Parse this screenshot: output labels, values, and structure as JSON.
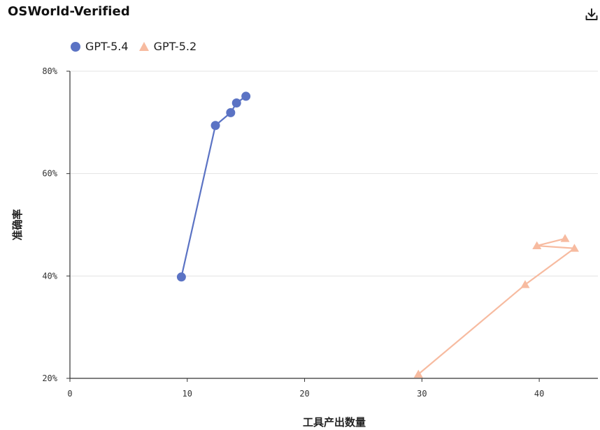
{
  "title": "OSWorld-Verified",
  "download_icon": "download-icon",
  "legend": [
    {
      "name": "GPT-5.4",
      "marker": "circle",
      "color": "#5b73c4"
    },
    {
      "name": "GPT-5.2",
      "marker": "triangle",
      "color": "#f7bba0"
    }
  ],
  "chart_data": {
    "type": "line",
    "title": "OSWorld-Verified",
    "xlabel": "工具产出数量",
    "ylabel": "准确率",
    "xlim": [
      0,
      45
    ],
    "ylim": [
      20,
      80
    ],
    "xticks": [
      0,
      10,
      20,
      30,
      40
    ],
    "xtick_labels": [
      "0",
      "10",
      "20",
      "30",
      "40"
    ],
    "yticks": [
      20,
      40,
      60,
      80
    ],
    "ytick_labels": [
      "20%",
      "40%",
      "60%",
      "80%"
    ],
    "grid": "horizontal",
    "legend_position": "top-left",
    "series": [
      {
        "name": "GPT-5.4",
        "marker": "circle",
        "color": "#5b73c4",
        "points": [
          {
            "x": 9.5,
            "y": 39.8
          },
          {
            "x": 12.4,
            "y": 69.4
          },
          {
            "x": 13.7,
            "y": 71.9
          },
          {
            "x": 14.2,
            "y": 73.8
          },
          {
            "x": 15.0,
            "y": 75.1
          }
        ]
      },
      {
        "name": "GPT-5.2",
        "marker": "triangle",
        "color": "#f7bba0",
        "points": [
          {
            "x": 29.7,
            "y": 20.8
          },
          {
            "x": 38.8,
            "y": 38.3
          },
          {
            "x": 43.0,
            "y": 45.4
          },
          {
            "x": 39.8,
            "y": 45.9
          },
          {
            "x": 42.2,
            "y": 47.3
          }
        ]
      }
    ]
  }
}
